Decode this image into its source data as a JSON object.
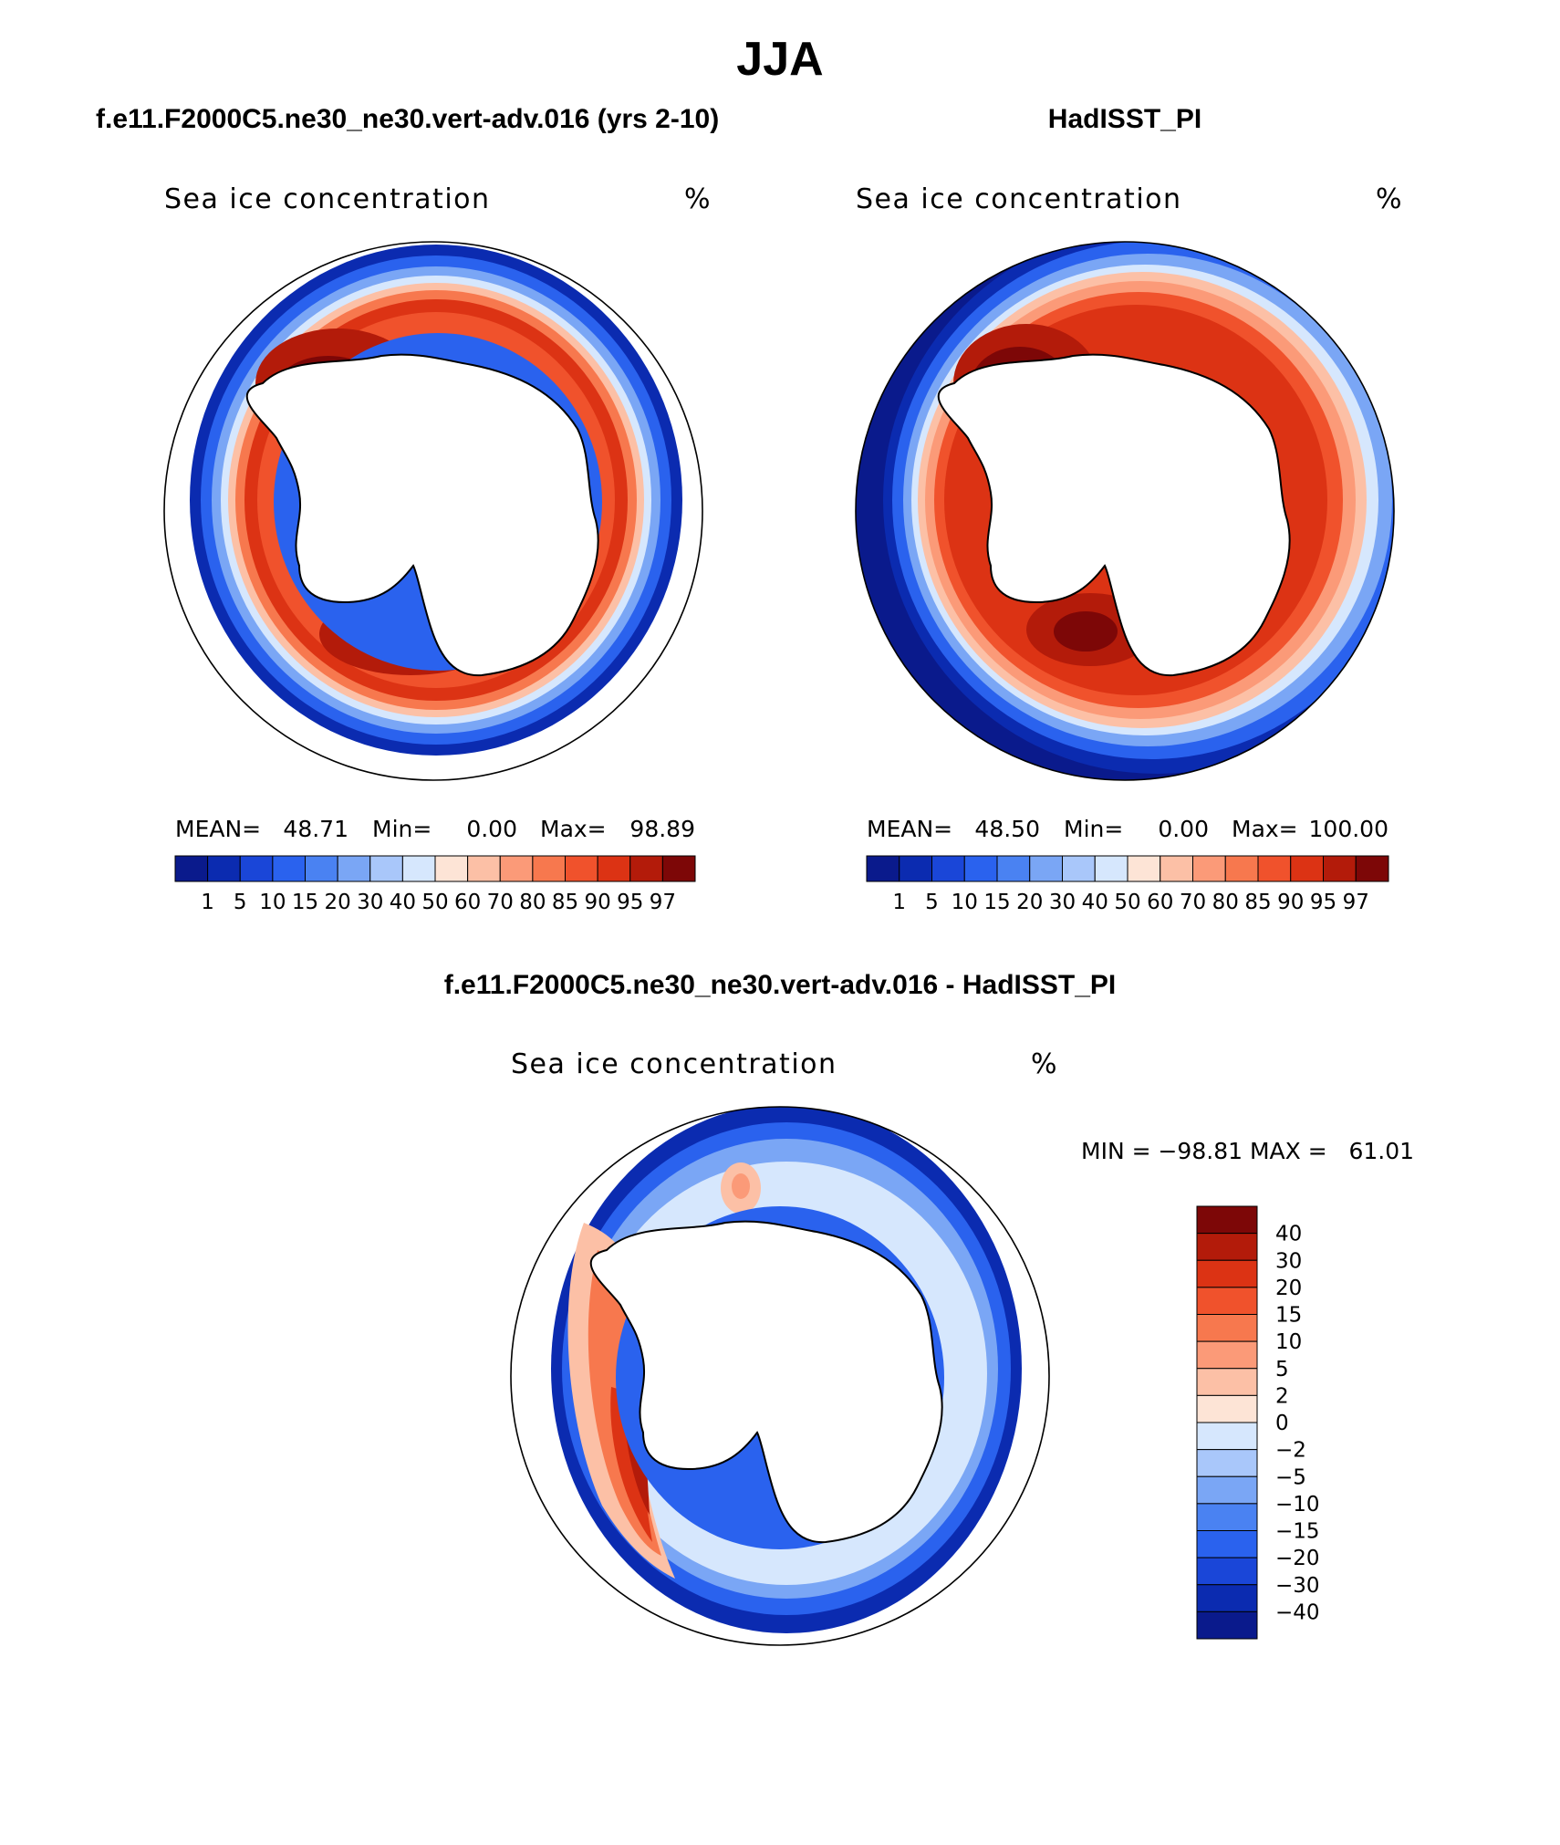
{
  "page": {
    "title": "JJA"
  },
  "panels": [
    {
      "header": "f.e11.F2000C5.ne30_ne30.vert-adv.016 (yrs 2-10)",
      "variable": "Sea ice concentration",
      "units": "%",
      "stats": {
        "mean_label": "MEAN=",
        "mean": "48.71",
        "min_label": "Min=",
        "min": "0.00",
        "max_label": "Max=",
        "max": "98.89"
      }
    },
    {
      "header": "HadISST_PI",
      "variable": "Sea ice concentration",
      "units": "%",
      "stats": {
        "mean_label": "MEAN=",
        "mean": "48.50",
        "min_label": "Min=",
        "min": "0.00",
        "max_label": "Max=",
        "max": "100.00"
      }
    },
    {
      "header": "f.e11.F2000C5.ne30_ne30.vert-adv.016 - HadISST_PI",
      "variable": "Sea ice concentration",
      "units": "%",
      "stats": {
        "minmax": "MIN = −98.81 MAX =   61.01"
      }
    }
  ],
  "colorbar_abs": {
    "colors": [
      "#0a1a8c",
      "#0b2bb0",
      "#1a46d8",
      "#2a62ee",
      "#4a82f2",
      "#7aa6f5",
      "#a9c7fa",
      "#d6e7fd",
      "#fde4d6",
      "#fcc0a6",
      "#fb9a78",
      "#f7784e",
      "#f0522c",
      "#dc3314",
      "#b31b0a",
      "#7d0707"
    ],
    "labels": [
      "1",
      "5",
      "10",
      "15",
      "20",
      "30",
      "40",
      "50",
      "60",
      "70",
      "80",
      "85",
      "90",
      "95",
      "97"
    ]
  },
  "colorbar_diff": {
    "colors_top_to_bottom": [
      "#7d0707",
      "#b31b0a",
      "#dc3314",
      "#f0522c",
      "#f7784e",
      "#fb9a78",
      "#fcc0a6",
      "#fde4d6",
      "#d6e7fd",
      "#a9c7fa",
      "#7aa6f5",
      "#4a82f2",
      "#2a62ee",
      "#1a46d8",
      "#0b2bb0",
      "#0a1a8c"
    ],
    "labels_top_to_bottom": [
      "40",
      "30",
      "20",
      "15",
      "10",
      "5",
      "2",
      "0",
      "−2",
      "−5",
      "−10",
      "−15",
      "−20",
      "−30",
      "−40"
    ]
  },
  "map_colors": {
    "ocean_none": "#ffffff",
    "ice_low": "#0a1a8c",
    "ice_high": "#7d0707",
    "diff_zero": "#d6e7fd"
  }
}
